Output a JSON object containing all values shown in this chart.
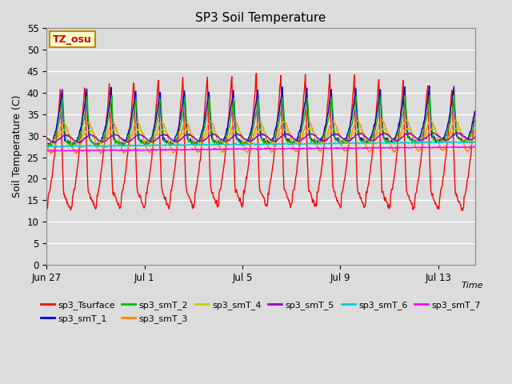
{
  "title": "SP3 Soil Temperature",
  "ylabel": "Soil Temperature (C)",
  "xlabel": "Time",
  "tz_label": "TZ_osu",
  "ylim": [
    0,
    55
  ],
  "yticks": [
    0,
    5,
    10,
    15,
    20,
    25,
    30,
    35,
    40,
    45,
    50,
    55
  ],
  "background_color": "#dcdcdc",
  "plot_bg_color": "#dcdcdc",
  "grid_color": "#ffffff",
  "series": [
    {
      "name": "sp3_Tsurface",
      "color": "#ff0000"
    },
    {
      "name": "sp3_smT_1",
      "color": "#0000cc"
    },
    {
      "name": "sp3_smT_2",
      "color": "#00bb00"
    },
    {
      "name": "sp3_smT_3",
      "color": "#ff8800"
    },
    {
      "name": "sp3_smT_4",
      "color": "#cccc00"
    },
    {
      "name": "sp3_smT_5",
      "color": "#9900bb"
    },
    {
      "name": "sp3_smT_6",
      "color": "#00cccc"
    },
    {
      "name": "sp3_smT_7",
      "color": "#ff00ff"
    }
  ],
  "x_tick_labels": [
    "Jun 27",
    "Jul 1",
    "Jul 5",
    "Jul 9",
    "Jul 13"
  ],
  "x_tick_positions": [
    0,
    4,
    8,
    12,
    16
  ],
  "num_days": 17.5,
  "samples_per_hour": 2
}
